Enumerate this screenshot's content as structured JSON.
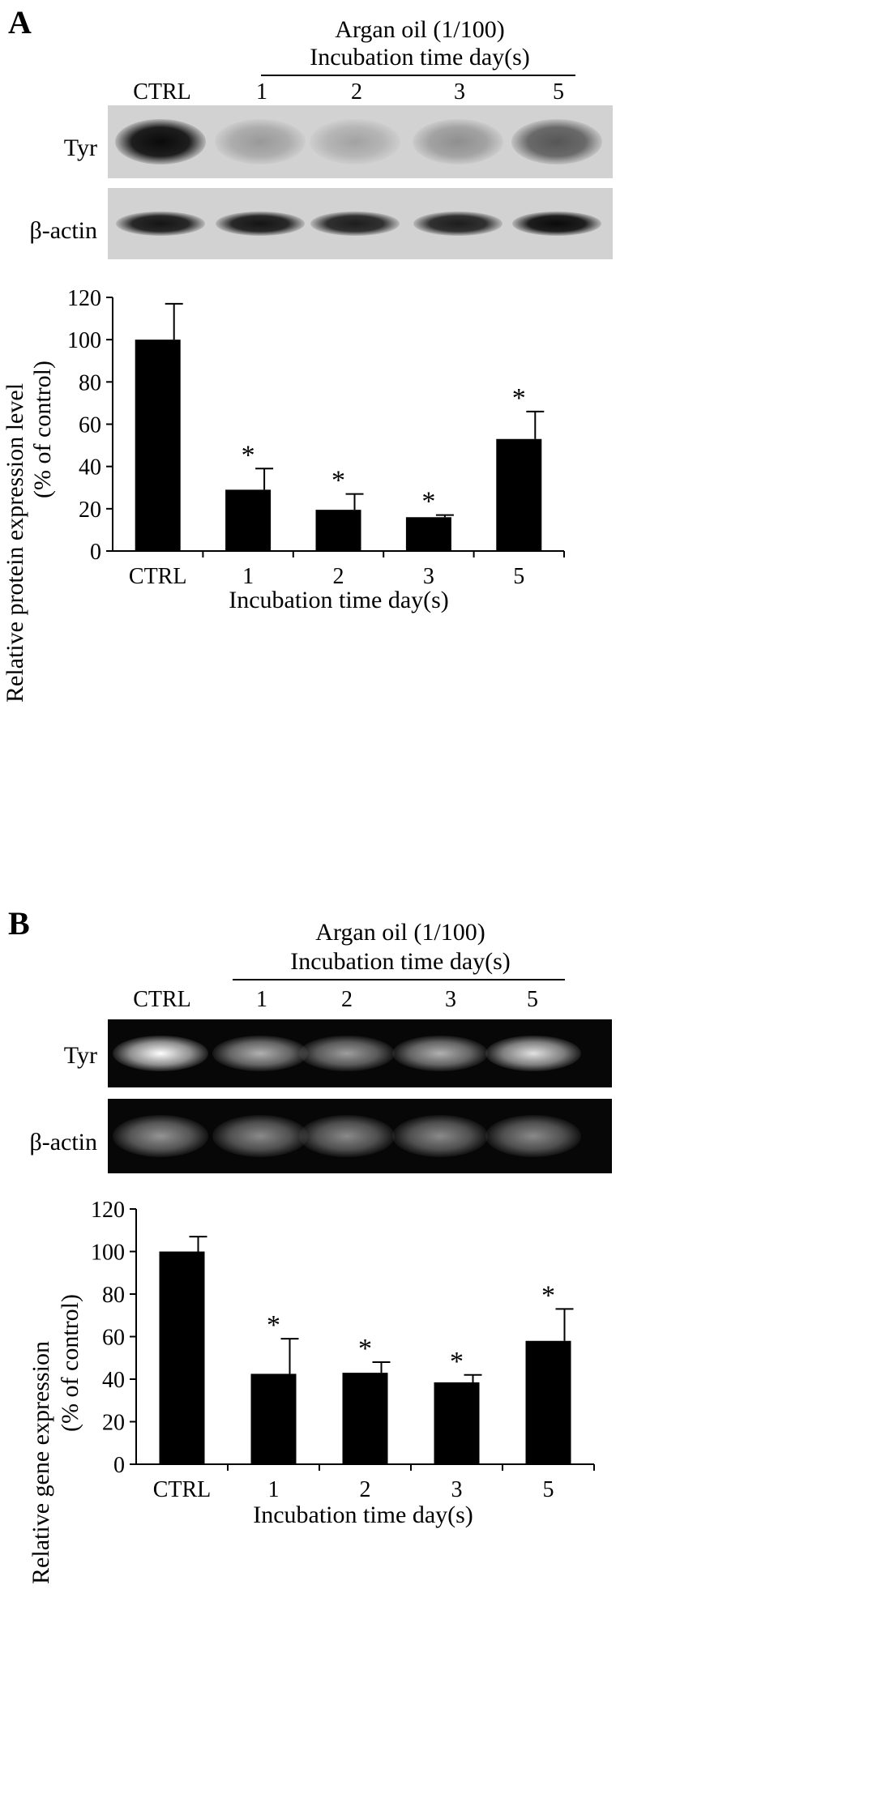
{
  "panels": [
    {
      "letter": "A",
      "treatment_line1": "Argan oil (1/100)",
      "treatment_line2": "Incubation time day(s)",
      "lanes": [
        "CTRL",
        "1",
        "2",
        "3",
        "5"
      ],
      "blot_rows": [
        "Tyr",
        "β-actin"
      ],
      "blot_style": "western",
      "band_intensity": {
        "Tyr": [
          1.0,
          0.25,
          0.2,
          0.3,
          0.6
        ],
        "β-actin": [
          0.95,
          0.95,
          0.9,
          0.9,
          1.0
        ]
      }
    },
    {
      "letter": "B",
      "treatment_line1": "Argan oil (1/100)",
      "treatment_line2": "Incubation time day(s)",
      "lanes": [
        "CTRL",
        "1",
        "2",
        "3",
        "5"
      ],
      "blot_rows": [
        "Tyr",
        "β-actin"
      ],
      "blot_style": "gel",
      "band_intensity": {
        "Tyr": [
          1.0,
          0.6,
          0.5,
          0.6,
          0.85
        ],
        "β-actin": [
          0.45,
          0.4,
          0.4,
          0.4,
          0.4
        ]
      }
    }
  ],
  "chart_data": [
    {
      "type": "bar",
      "categories": [
        "CTRL",
        "1",
        "2",
        "3",
        "5"
      ],
      "values": [
        100,
        29,
        19.5,
        16,
        53
      ],
      "errors": [
        17,
        10,
        7.5,
        1,
        13
      ],
      "significance": [
        "",
        "*",
        "*",
        "*",
        "*"
      ],
      "ylabel_line1": "Relative protein expression level",
      "ylabel_line2": "(% of control)",
      "xlabel": "Incubation time day(s)",
      "ylim": [
        0,
        120
      ],
      "yticks": [
        0,
        20,
        40,
        60,
        80,
        100,
        120
      ],
      "bar_color": "#000000"
    },
    {
      "type": "bar",
      "categories": [
        "CTRL",
        "1",
        "2",
        "3",
        "5"
      ],
      "values": [
        100,
        42.5,
        43,
        38.5,
        58
      ],
      "errors": [
        7,
        16.5,
        5,
        3.5,
        15
      ],
      "significance": [
        "",
        "*",
        "*",
        "*",
        "*"
      ],
      "ylabel_line1": "Relative gene expression",
      "ylabel_line2": "(% of control)",
      "xlabel": "Incubation time day(s)",
      "ylim": [
        0,
        120
      ],
      "yticks": [
        0,
        20,
        40,
        60,
        80,
        100,
        120
      ],
      "bar_color": "#000000"
    }
  ]
}
